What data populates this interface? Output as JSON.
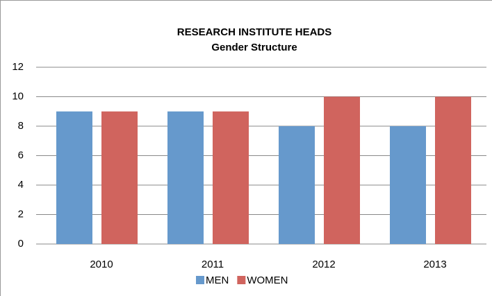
{
  "chart_data": {
    "type": "bar",
    "title": "RESEARCH INSTITUTE HEADS",
    "subtitle": "Gender Structure",
    "categories": [
      "2010",
      "2011",
      "2012",
      "2013"
    ],
    "series": [
      {
        "name": "MEN",
        "color": "#6699cc",
        "values": [
          9,
          9,
          8,
          8
        ]
      },
      {
        "name": "WOMEN",
        "color": "#d0645e",
        "values": [
          9,
          9,
          10,
          10
        ]
      }
    ],
    "ylim": [
      0,
      12
    ],
    "yticks": [
      0,
      2,
      4,
      6,
      8,
      10,
      12
    ],
    "grid": true,
    "legend": "bottom"
  }
}
